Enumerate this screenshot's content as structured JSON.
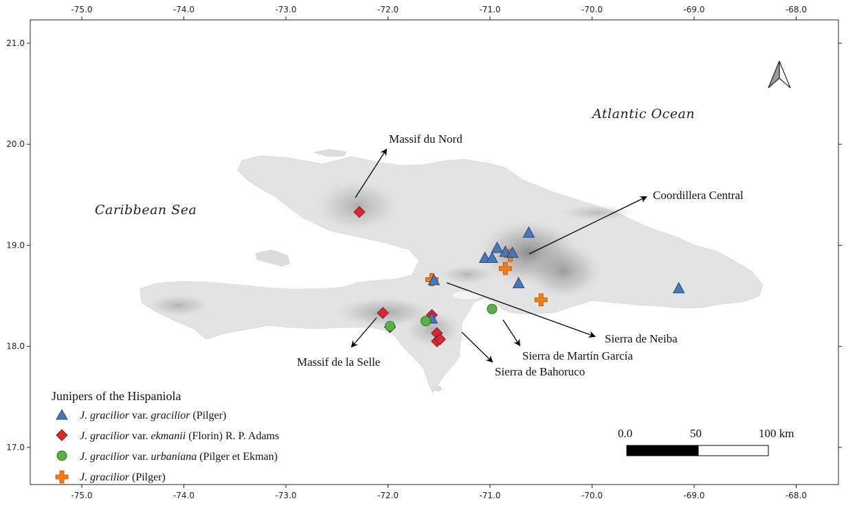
{
  "axes": {
    "x_ticks": [
      "-75.0",
      "-74.0",
      "-73.0",
      "-72.0",
      "-71.0",
      "-70.0",
      "-69.0",
      "-68.0"
    ],
    "y_ticks": [
      "21.0",
      "20.0",
      "19.0",
      "18.0",
      "17.0"
    ],
    "lon_range": [
      -75.6,
      -67.6
    ],
    "lat_range": [
      16.55,
      21.25
    ]
  },
  "sea_labels": {
    "atlantic": "Atlantic Ocean",
    "caribbean": "Caribbean Sea"
  },
  "regions": [
    {
      "label": "Massif du Nord"
    },
    {
      "label": "Coordillera Central"
    },
    {
      "label": "Sierra de Neiba"
    },
    {
      "label": "Sierra de Martín García"
    },
    {
      "label": "Sierra de Bahoruco"
    },
    {
      "label": "Massif de la Selle"
    }
  ],
  "legend": {
    "title": "Junipers of the Hispaniola",
    "items": [
      {
        "italic": "J. gracilior",
        "mid": " var. ",
        "italic2": "gracilior",
        "rest": " (Pilger)",
        "marker": "triangle",
        "color": "#4a78b5"
      },
      {
        "italic": "J. gracilior",
        "mid": " var. ",
        "italic2": "ekmanii",
        "rest": " (Florin) R. P. Adams",
        "marker": "diamond",
        "color": "#d42a35"
      },
      {
        "italic": "J. gracilior",
        "mid": " var. ",
        "italic2": "urbaniana",
        "rest": " (Pilger et Ekman)",
        "marker": "circle",
        "color": "#5cb04a"
      },
      {
        "italic": "J. gracilior",
        "mid": " ",
        "italic2": "",
        "rest": "(Pilger)",
        "marker": "cross",
        "color": "#f07c1a"
      }
    ]
  },
  "scale_bar": {
    "labels": [
      "0.0",
      "50",
      "100 km"
    ]
  },
  "colors": {
    "gracilior": "#4a78b5",
    "ekmanii": "#d42a35",
    "urbaniana": "#5cb04a",
    "pilger": "#f07c1a",
    "land": "#e3e3e3",
    "mountain": "#a8a8a8"
  },
  "points": {
    "gracilior": [
      [
        -71.05,
        18.87
      ],
      [
        -70.98,
        18.87
      ],
      [
        -70.93,
        18.97
      ],
      [
        -70.85,
        18.93
      ],
      [
        -70.78,
        18.92
      ],
      [
        -70.62,
        19.12
      ],
      [
        -70.72,
        18.62
      ],
      [
        -71.55,
        18.65
      ],
      [
        -71.57,
        18.27
      ],
      [
        -69.15,
        18.57
      ]
    ],
    "ekmanii": [
      [
        -72.28,
        19.33
      ],
      [
        -72.05,
        18.33
      ],
      [
        -71.98,
        18.19
      ],
      [
        -71.57,
        18.31
      ],
      [
        -71.52,
        18.13
      ],
      [
        -71.52,
        18.05
      ],
      [
        -71.49,
        18.07
      ]
    ],
    "urbaniana": [
      [
        -71.98,
        18.2
      ],
      [
        -71.63,
        18.25
      ],
      [
        -70.98,
        18.37
      ]
    ],
    "pilger": [
      [
        -70.85,
        18.77
      ],
      [
        -70.8,
        18.9
      ],
      [
        -70.5,
        18.46
      ],
      [
        -71.57,
        18.66
      ]
    ]
  }
}
